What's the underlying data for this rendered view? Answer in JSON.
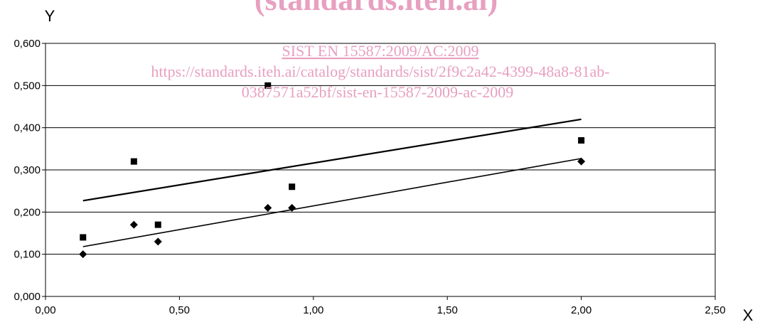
{
  "watermark": {
    "title": "(standards.iteh.ai)",
    "code": "SIST EN 15587:2009/AC:2009",
    "url_line1": "https://standards.iteh.ai/catalog/standards/sist/2f9c2a42-4399-48a8-81ab-",
    "url_line2": "0387571a52bf/sist-en-15587-2009-ac-2009",
    "color": "#e8a0c0"
  },
  "chart_data": {
    "type": "scatter",
    "xlabel": "X",
    "ylabel": "Y",
    "xlim": [
      0,
      2.5
    ],
    "ylim": [
      0,
      0.6
    ],
    "x_ticks": [
      "0,00",
      "0,50",
      "1,00",
      "1,50",
      "2,00",
      "2,50"
    ],
    "y_ticks": [
      "0,000",
      "0,100",
      "0,200",
      "0,300",
      "0,400",
      "0,500",
      "0,600"
    ],
    "x_tick_values": [
      0,
      0.5,
      1.0,
      1.5,
      2.0,
      2.5
    ],
    "y_tick_values": [
      0,
      0.1,
      0.2,
      0.3,
      0.4,
      0.5,
      0.6
    ],
    "grid": "horizontal",
    "series": [
      {
        "marker": "square",
        "color": "#000000",
        "points": [
          [
            0.14,
            0.14
          ],
          [
            0.33,
            0.32
          ],
          [
            0.42,
            0.17
          ],
          [
            0.83,
            0.5
          ],
          [
            0.92,
            0.26
          ],
          [
            2.0,
            0.37
          ]
        ],
        "trendline": [
          [
            0.14,
            0.227
          ],
          [
            2.0,
            0.42
          ]
        ]
      },
      {
        "marker": "diamond",
        "color": "#000000",
        "points": [
          [
            0.14,
            0.1
          ],
          [
            0.33,
            0.17
          ],
          [
            0.42,
            0.13
          ],
          [
            0.83,
            0.21
          ],
          [
            0.92,
            0.21
          ],
          [
            2.0,
            0.32
          ]
        ],
        "trendline": [
          [
            0.14,
            0.118
          ],
          [
            2.0,
            0.327
          ]
        ]
      }
    ]
  }
}
